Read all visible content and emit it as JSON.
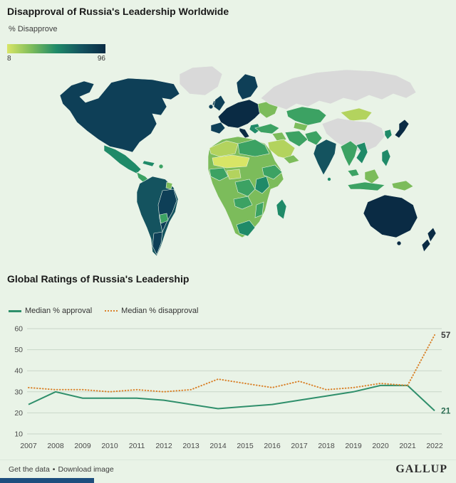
{
  "page": {
    "background": "#e9f3e7",
    "bottom_strip_color": "#1d4e7e"
  },
  "map": {
    "title": "Disapproval of Russia's Leadership Worldwide",
    "legend_label": "% Disapprove",
    "legend_min": "8",
    "legend_max": "96",
    "palette": {
      "band1": "#d8e566",
      "band2": "#b3d35e",
      "band3": "#7cbc5b",
      "band4": "#3ca263",
      "band5": "#1f8a68",
      "band6": "#14535f",
      "band7": "#0e3f57",
      "band8": "#0a2b44",
      "nodata": "#d9d9d9"
    }
  },
  "chart_data": [
    {
      "type": "choropleth",
      "title": "Disapproval of Russia's Leadership Worldwide",
      "legend": {
        "label": "% Disapprove",
        "min": 8,
        "max": 96
      },
      "note": "Country shading ranges from light yellow-green (~8% disapprove) to dark navy (96% disapprove); gray = no data",
      "regions": {
        "very_high": [
          "North America",
          "Western Europe",
          "Scandinavia",
          "United Kingdom",
          "Japan",
          "Australia",
          "New Zealand",
          "Brazil",
          "Argentina"
        ],
        "high": [
          "Mexico",
          "Andean South America",
          "India",
          "Madagascar",
          "Philippines",
          "South Africa",
          "Vietnam",
          "Balkans"
        ],
        "medium": [
          "Turkey",
          "Iran",
          "Central Asia",
          "East Africa",
          "Indonesia",
          "Thailand",
          "Ethiopia",
          "DR Congo"
        ],
        "low": [
          "Saudi Arabia",
          "Northwest Africa",
          "Nigeria",
          "Mongolia"
        ],
        "lowest": [
          "Sahel (Mali, Niger)"
        ],
        "no_data": [
          "Russia",
          "China",
          "Greenland"
        ]
      }
    },
    {
      "type": "line",
      "title": "Global Ratings of Russia's Leadership",
      "x": [
        2007,
        2008,
        2009,
        2010,
        2011,
        2012,
        2013,
        2014,
        2015,
        2016,
        2017,
        2018,
        2019,
        2020,
        2021,
        2022
      ],
      "series": [
        {
          "name": "Median % approval",
          "style": "solid",
          "color": "#2f8f6b",
          "values": [
            24,
            30,
            27,
            27,
            27,
            26,
            24,
            22,
            23,
            24,
            26,
            28,
            30,
            33,
            33,
            21
          ],
          "end_label": "21",
          "end_label_color": "#2f6f55"
        },
        {
          "name": "Median % disapproval",
          "style": "dotted",
          "color": "#d9822b",
          "values": [
            32,
            31,
            31,
            30,
            31,
            30,
            31,
            36,
            34,
            32,
            35,
            31,
            32,
            34,
            33,
            57
          ],
          "end_label": "57",
          "end_label_color": "#3d3d3d"
        }
      ],
      "ylim": [
        10,
        60
      ],
      "yticks": [
        60,
        50,
        40,
        30,
        20,
        10
      ],
      "grid": true,
      "legend_position": "top-left"
    }
  ],
  "footer": {
    "links": [
      {
        "label": "Get the data"
      },
      {
        "label": "Download image"
      }
    ],
    "separator": "•",
    "brand": "GALLUP"
  }
}
